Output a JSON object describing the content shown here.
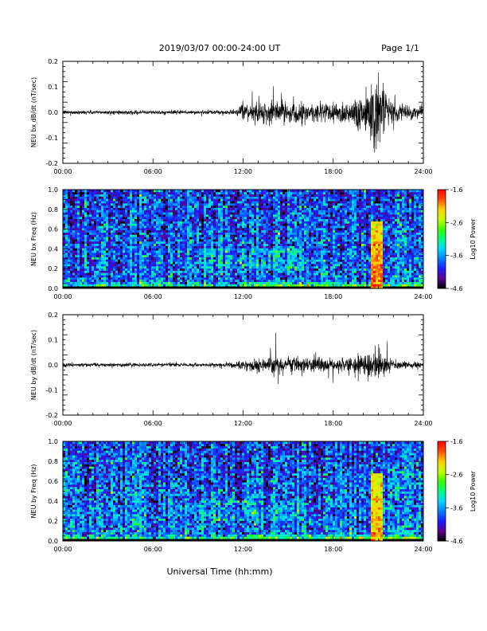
{
  "header": {
    "title": "2019/03/07  00:00-24:00 UT",
    "page": "Page 1/1"
  },
  "footer": {
    "xlabel": "Universal Time (hh:mm)"
  },
  "chart_data": [
    {
      "type": "line",
      "ylabel": "NEU bx dB/dt (nT/sec)",
      "xlim": [
        0,
        24
      ],
      "ylim": [
        -0.2,
        0.2
      ],
      "x_tick_labels": [
        "00:00",
        "06:00",
        "12:00",
        "18:00",
        "24:00"
      ],
      "y_ticks": [
        -0.2,
        -0.1,
        0.0,
        0.1,
        0.2
      ],
      "y_tick_labels": [
        "-0.2",
        "-0.1",
        "0.0",
        "0.1",
        "0.2"
      ],
      "envelope": {
        "x": [
          0,
          2,
          4,
          6,
          8,
          10,
          11.5,
          12,
          13,
          14,
          15,
          16,
          17,
          18,
          19,
          20,
          20.5,
          21,
          21.5,
          22,
          23,
          24
        ],
        "amplitude": [
          0.008,
          0.008,
          0.008,
          0.008,
          0.008,
          0.008,
          0.01,
          0.03,
          0.045,
          0.05,
          0.045,
          0.04,
          0.045,
          0.045,
          0.05,
          0.09,
          0.15,
          0.16,
          0.08,
          0.04,
          0.03,
          0.02
        ]
      },
      "series": [
        {
          "color": "#000000"
        }
      ]
    },
    {
      "type": "heatmap",
      "ylabel": "NEU bx Freq (Hz)",
      "xlim": [
        0,
        24
      ],
      "ylim": [
        0.0,
        1.0
      ],
      "x_tick_labels": [
        "00:00",
        "06:00",
        "12:00",
        "18:00",
        "24:00"
      ],
      "y_ticks": [
        0.0,
        0.2,
        0.4,
        0.6,
        0.8,
        1.0
      ],
      "y_tick_labels": [
        "0.0",
        "0.2",
        "0.4",
        "0.6",
        "0.8",
        "1.0"
      ],
      "colorbar": {
        "label": "Log10 Power",
        "min": -4.6,
        "max": -1.6,
        "tick_labels": [
          "-1.6",
          "-2.6",
          "-3.6",
          "-4.6"
        ],
        "ticks": [
          -1.6,
          -2.6,
          -3.6,
          -4.6
        ]
      },
      "colormap": [
        "#000000",
        "#5a0090",
        "#1a1aff",
        "#0080ff",
        "#00d8ff",
        "#00ff80",
        "#40ff00",
        "#c8ff00",
        "#ffd000",
        "#ff5000",
        "#ff0000"
      ],
      "features": {
        "low_frequency_band_hz": 0.03,
        "event_time_h": 20.9,
        "event_max_freq_hz": 0.68,
        "background_log10_power": -3.6,
        "event_log10_power": -2.0
      }
    },
    {
      "type": "line",
      "ylabel": "NEU by dB/dt (nT/sec)",
      "xlim": [
        0,
        24
      ],
      "ylim": [
        -0.2,
        0.2
      ],
      "x_tick_labels": [
        "00:00",
        "06:00",
        "12:00",
        "18:00",
        "24:00"
      ],
      "y_ticks": [
        -0.2,
        -0.1,
        0.0,
        0.1,
        0.2
      ],
      "y_tick_labels": [
        "-0.2",
        "-0.1",
        "0.0",
        "0.1",
        "0.2"
      ],
      "envelope": {
        "x": [
          0,
          2,
          4,
          6,
          8,
          10,
          11,
          12,
          13,
          14,
          15,
          16,
          17,
          18,
          19,
          20,
          20.5,
          21,
          21.5,
          22,
          23,
          24
        ],
        "amplitude": [
          0.008,
          0.008,
          0.008,
          0.008,
          0.008,
          0.008,
          0.01,
          0.02,
          0.03,
          0.04,
          0.035,
          0.035,
          0.04,
          0.03,
          0.03,
          0.045,
          0.06,
          0.065,
          0.04,
          0.02,
          0.015,
          0.012
        ]
      },
      "series": [
        {
          "color": "#000000"
        }
      ]
    },
    {
      "type": "heatmap",
      "ylabel": "NEU by Freq (Hz)",
      "xlim": [
        0,
        24
      ],
      "ylim": [
        0.0,
        1.0
      ],
      "x_tick_labels": [
        "00:00",
        "06:00",
        "12:00",
        "18:00",
        "24:00"
      ],
      "y_ticks": [
        0.0,
        0.2,
        0.4,
        0.6,
        0.8,
        1.0
      ],
      "y_tick_labels": [
        "0.0",
        "0.2",
        "0.4",
        "0.6",
        "0.8",
        "1.0"
      ],
      "colorbar": {
        "label": "Log10 Power",
        "min": -4.6,
        "max": -1.6,
        "tick_labels": [
          "-1.6",
          "-2.6",
          "-3.6",
          "-4.6"
        ],
        "ticks": [
          -1.6,
          -2.6,
          -3.6,
          -4.6
        ]
      },
      "colormap": [
        "#000000",
        "#5a0090",
        "#1a1aff",
        "#0080ff",
        "#00d8ff",
        "#00ff80",
        "#40ff00",
        "#c8ff00",
        "#ffd000",
        "#ff5000",
        "#ff0000"
      ],
      "features": {
        "low_frequency_band_hz": 0.03,
        "event_time_h": 20.9,
        "event_max_freq_hz": 0.68,
        "background_log10_power": -3.6,
        "event_log10_power": -2.1
      }
    }
  ]
}
